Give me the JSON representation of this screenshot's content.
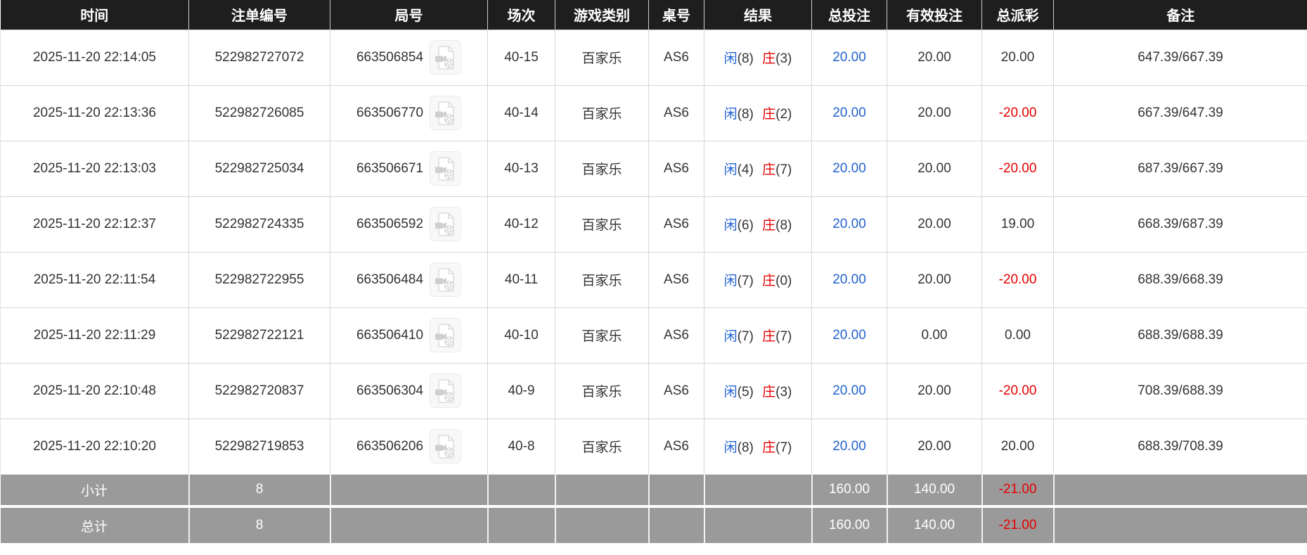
{
  "table": {
    "columns": [
      {
        "key": "time",
        "label": "时间"
      },
      {
        "key": "bet_id",
        "label": "注单编号"
      },
      {
        "key": "round_id",
        "label": "局号"
      },
      {
        "key": "session",
        "label": "场次"
      },
      {
        "key": "game_type",
        "label": "游戏类别"
      },
      {
        "key": "table_no",
        "label": "桌号"
      },
      {
        "key": "result",
        "label": "结果"
      },
      {
        "key": "total_bet",
        "label": "总投注"
      },
      {
        "key": "valid_bet",
        "label": "有效投注"
      },
      {
        "key": "payout",
        "label": "总派彩"
      },
      {
        "key": "remark",
        "label": "备注"
      }
    ],
    "rows": [
      {
        "time": "2025-11-20 22:14:05",
        "bet_id": "522982727072",
        "round_id": "663506854",
        "session": "40-15",
        "game_type": "百家乐",
        "table_no": "AS6",
        "player_label": "闲",
        "player_num": "(8)",
        "banker_label": "庄",
        "banker_num": "(3)",
        "total_bet": "20.00",
        "valid_bet": "20.00",
        "payout": "20.00",
        "remark": "647.39/667.39"
      },
      {
        "time": "2025-11-20 22:13:36",
        "bet_id": "522982726085",
        "round_id": "663506770",
        "session": "40-14",
        "game_type": "百家乐",
        "table_no": "AS6",
        "player_label": "闲",
        "player_num": "(8)",
        "banker_label": "庄",
        "banker_num": "(2)",
        "total_bet": "20.00",
        "valid_bet": "20.00",
        "payout": "-20.00",
        "remark": "667.39/647.39"
      },
      {
        "time": "2025-11-20 22:13:03",
        "bet_id": "522982725034",
        "round_id": "663506671",
        "session": "40-13",
        "game_type": "百家乐",
        "table_no": "AS6",
        "player_label": "闲",
        "player_num": "(4)",
        "banker_label": "庄",
        "banker_num": "(7)",
        "total_bet": "20.00",
        "valid_bet": "20.00",
        "payout": "-20.00",
        "remark": "687.39/667.39"
      },
      {
        "time": "2025-11-20 22:12:37",
        "bet_id": "522982724335",
        "round_id": "663506592",
        "session": "40-12",
        "game_type": "百家乐",
        "table_no": "AS6",
        "player_label": "闲",
        "player_num": "(6)",
        "banker_label": "庄",
        "banker_num": "(8)",
        "total_bet": "20.00",
        "valid_bet": "20.00",
        "payout": "19.00",
        "remark": "668.39/687.39"
      },
      {
        "time": "2025-11-20 22:11:54",
        "bet_id": "522982722955",
        "round_id": "663506484",
        "session": "40-11",
        "game_type": "百家乐",
        "table_no": "AS6",
        "player_label": "闲",
        "player_num": "(7)",
        "banker_label": "庄",
        "banker_num": "(0)",
        "total_bet": "20.00",
        "valid_bet": "20.00",
        "payout": "-20.00",
        "remark": "688.39/668.39"
      },
      {
        "time": "2025-11-20 22:11:29",
        "bet_id": "522982722121",
        "round_id": "663506410",
        "session": "40-10",
        "game_type": "百家乐",
        "table_no": "AS6",
        "player_label": "闲",
        "player_num": "(7)",
        "banker_label": "庄",
        "banker_num": "(7)",
        "total_bet": "20.00",
        "valid_bet": "0.00",
        "payout": "0.00",
        "remark": "688.39/688.39"
      },
      {
        "time": "2025-11-20 22:10:48",
        "bet_id": "522982720837",
        "round_id": "663506304",
        "session": "40-9",
        "game_type": "百家乐",
        "table_no": "AS6",
        "player_label": "闲",
        "player_num": "(5)",
        "banker_label": "庄",
        "banker_num": "(3)",
        "total_bet": "20.00",
        "valid_bet": "20.00",
        "payout": "-20.00",
        "remark": "708.39/688.39"
      },
      {
        "time": "2025-11-20 22:10:20",
        "bet_id": "522982719853",
        "round_id": "663506206",
        "session": "40-8",
        "game_type": "百家乐",
        "table_no": "AS6",
        "player_label": "闲",
        "player_num": "(8)",
        "banker_label": "庄",
        "banker_num": "(7)",
        "total_bet": "20.00",
        "valid_bet": "20.00",
        "payout": "20.00",
        "remark": "688.39/708.39"
      }
    ],
    "summary": [
      {
        "label": "小计",
        "count": "8",
        "total_bet": "160.00",
        "valid_bet": "140.00",
        "payout": "-21.00",
        "total": false
      },
      {
        "label": "总计",
        "count": "8",
        "total_bet": "160.00",
        "valid_bet": "140.00",
        "payout": "-21.00",
        "total": true
      }
    ]
  },
  "icons": {
    "round_video_icon": "video-file-icon"
  },
  "colors": {
    "header_bg": "#1e1e1e",
    "header_text": "#ffffff",
    "body_text": "#333333",
    "total_bet_blue": "#2262cf",
    "negative_red": "#e60000",
    "player_blue": "#2262cf",
    "banker_red": "#e60000",
    "summary_bg": "#9a9a9a",
    "border": "#cccccc"
  }
}
